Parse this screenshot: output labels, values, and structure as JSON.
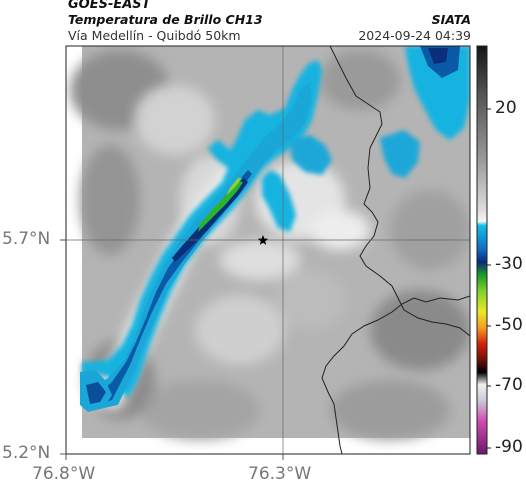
{
  "header": {
    "satellite": "GOES-EAST",
    "product": "Temperatura de Brillo CH13",
    "route": "Vía Medellín - Quibdó 50km",
    "organization": "SIATA",
    "timestamp": "2024-09-24 04:39"
  },
  "axes": {
    "y_ticks": [
      "5.7°N",
      "5.2°N"
    ],
    "x_ticks": [
      "76.8°W",
      "76.3°W"
    ]
  },
  "marker": {
    "icon": "star-icon"
  },
  "colorbar": {
    "tick_labels": [
      "20",
      "-30",
      "-50",
      "-70",
      "-90"
    ]
  },
  "colors": {
    "cold_cloud": "#1aa7d8",
    "deep_cloud": "#0a4f9a",
    "overshoot": "#2cb82c",
    "background_gray": "#a8a8a8"
  }
}
